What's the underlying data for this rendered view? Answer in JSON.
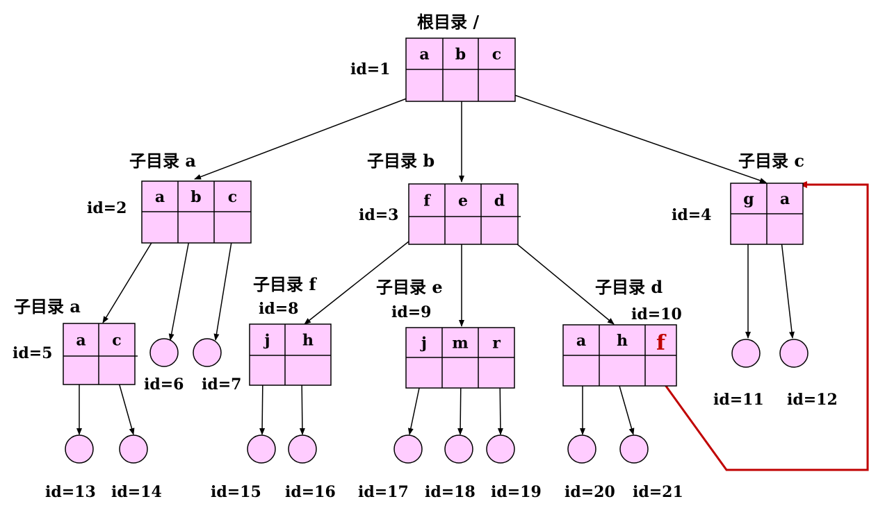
{
  "directories": [
    {
      "key": "root",
      "id_label": "id=1",
      "title": "根目录 /",
      "entries": [
        "a",
        "b",
        "c"
      ]
    },
    {
      "key": "d2",
      "id_label": "id=2",
      "title": "子目录 a",
      "entries": [
        "a",
        "b",
        "c"
      ]
    },
    {
      "key": "d3",
      "id_label": "id=3",
      "title": "子目录 b",
      "entries": [
        "f",
        "e",
        "d"
      ]
    },
    {
      "key": "d4",
      "id_label": "id=4",
      "title": "子目录 c",
      "entries": [
        "g",
        "a"
      ]
    },
    {
      "key": "d5",
      "id_label": "id=5",
      "title": "子目录 a",
      "entries": [
        "a",
        "c"
      ]
    },
    {
      "key": "d8",
      "id_label": "id=8",
      "title": "子目录 f",
      "entries": [
        "j",
        "h"
      ]
    },
    {
      "key": "d9",
      "id_label": "id=9",
      "title": "子目录 e",
      "entries": [
        "j",
        "m",
        "r"
      ]
    },
    {
      "key": "d10",
      "id_label": "id=10",
      "title": "子目录 d",
      "entries": [
        "a",
        "h",
        "f"
      ],
      "highlight_entry": 2
    }
  ],
  "files": [
    {
      "key": "f6",
      "id_label": "id=6"
    },
    {
      "key": "f7",
      "id_label": "id=7"
    },
    {
      "key": "f11",
      "id_label": "id=11"
    },
    {
      "key": "f12",
      "id_label": "id=12"
    },
    {
      "key": "f13",
      "id_label": "id=13"
    },
    {
      "key": "f14",
      "id_label": "id=14"
    },
    {
      "key": "f15",
      "id_label": "id=15"
    },
    {
      "key": "f16",
      "id_label": "id=16"
    },
    {
      "key": "f17",
      "id_label": "id=17"
    },
    {
      "key": "f18",
      "id_label": "id=18"
    },
    {
      "key": "f19",
      "id_label": "id=19"
    },
    {
      "key": "f20",
      "id_label": "id=20"
    },
    {
      "key": "f21",
      "id_label": "id=21"
    }
  ],
  "colors": {
    "box_fill": "#ffccff",
    "highlight": "#c00000",
    "line": "#000000"
  }
}
